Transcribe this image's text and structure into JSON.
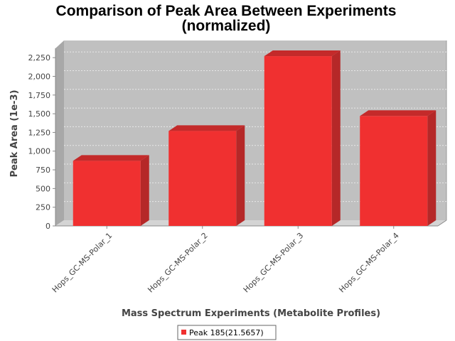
{
  "chart_data": {
    "type": "bar",
    "title": "Comparison of Peak Area Between Experiments",
    "subtitle": "(normalized)",
    "xlabel": "Mass Spectrum Experiments (Metabolite Profiles)",
    "ylabel": "Peak Area (1e-3)",
    "categories": [
      "Hops_GC-MS-Polar_1",
      "Hops_GC-MS-Polar_2",
      "Hops_GC-MS-Polar_3",
      "Hops_GC-MS-Polar_4"
    ],
    "series": [
      {
        "name": "Peak 185(21.5657)",
        "values": [
          870,
          1270,
          2270,
          1470
        ],
        "color": "#f03030"
      }
    ],
    "ylim": [
      0,
      2375
    ],
    "yticks": [
      0,
      250,
      500,
      750,
      1000,
      1250,
      1500,
      1750,
      2000,
      2250
    ],
    "ytick_labels": [
      "0",
      "250",
      "500",
      "750",
      "1,000",
      "1,250",
      "1,500",
      "1,750",
      "2,000",
      "2,250"
    ],
    "grid": true,
    "legend_position": "bottom",
    "style": "3d",
    "plot_background": "#c0c0c0"
  }
}
